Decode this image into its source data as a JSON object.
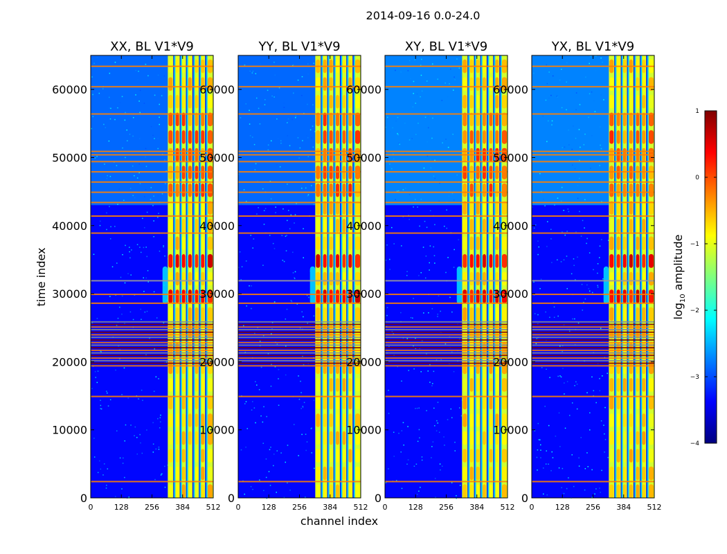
{
  "figure": {
    "suptitle": "2014-09-16 0.0-24.0",
    "xlabel": "channel index",
    "ylabel": "time index"
  },
  "colorbar": {
    "label": "log10 amplitude",
    "label_base": "log",
    "label_sub": "10",
    "label_rest": " amplitude",
    "ticks": [
      "1",
      "0",
      "−1",
      "−2",
      "−3",
      "−4"
    ],
    "range": [
      -4,
      1
    ],
    "colormap": "jet",
    "colors": [
      "#00007f",
      "#0000ff",
      "#007fff",
      "#00ffff",
      "#7fff7f",
      "#ffff00",
      "#ff7f00",
      "#ff0000",
      "#7f0000"
    ]
  },
  "chart_data": [
    {
      "type": "heatmap",
      "title": "XX, BL V1*V9",
      "xlabel": "channel index",
      "ylabel": "time index",
      "xlim": [
        0,
        512
      ],
      "ylim": [
        0,
        65000
      ],
      "xticks": [
        "0",
        "128",
        "256",
        "384",
        "512"
      ],
      "yticks": [
        "0",
        "10000",
        "20000",
        "30000",
        "40000",
        "50000",
        "60000"
      ],
      "ytick_values": [
        0,
        10000,
        20000,
        30000,
        40000,
        50000,
        60000
      ],
      "background_log_amplitude": -3.2,
      "strong_channel_range": [
        322,
        512
      ],
      "peak_time_range": [
        28000,
        36000
      ],
      "flagged_time_band": [
        19500,
        26000
      ]
    },
    {
      "type": "heatmap",
      "title": "YY, BL V1*V9",
      "xlim": [
        0,
        512
      ],
      "ylim": [
        0,
        65000
      ],
      "xticks": [
        "0",
        "128",
        "256",
        "384",
        "512"
      ],
      "yticks": [
        "0",
        "10000",
        "20000",
        "30000",
        "40000",
        "50000",
        "60000"
      ],
      "ytick_values": [
        0,
        10000,
        20000,
        30000,
        40000,
        50000,
        60000
      ],
      "background_log_amplitude": -3.2,
      "strong_channel_range": [
        322,
        512
      ],
      "peak_time_range": [
        28000,
        36000
      ],
      "flagged_time_band": [
        19500,
        26000
      ]
    },
    {
      "type": "heatmap",
      "title": "XY, BL V1*V9",
      "xlim": [
        0,
        512
      ],
      "ylim": [
        0,
        65000
      ],
      "xticks": [
        "0",
        "128",
        "256",
        "384",
        "512"
      ],
      "yticks": [
        "0",
        "10000",
        "20000",
        "30000",
        "40000",
        "50000",
        "60000"
      ],
      "ytick_values": [
        0,
        10000,
        20000,
        30000,
        40000,
        50000,
        60000
      ],
      "background_log_amplitude": -3.2,
      "strong_channel_range": [
        322,
        512
      ],
      "peak_time_range": [
        28000,
        36000
      ],
      "flagged_time_band": [
        19500,
        26000
      ]
    },
    {
      "type": "heatmap",
      "title": "YX, BL V1*V9",
      "xlim": [
        0,
        512
      ],
      "ylim": [
        0,
        65000
      ],
      "xticks": [
        "0",
        "128",
        "256",
        "384",
        "512"
      ],
      "yticks": [
        "0",
        "10000",
        "20000",
        "30000",
        "40000",
        "50000",
        "60000"
      ],
      "ytick_values": [
        0,
        10000,
        20000,
        30000,
        40000,
        50000,
        60000
      ],
      "background_log_amplitude": -3.2,
      "strong_channel_range": [
        322,
        512
      ],
      "peak_time_range": [
        28000,
        36000
      ],
      "flagged_time_band": [
        19500,
        26000
      ]
    }
  ]
}
